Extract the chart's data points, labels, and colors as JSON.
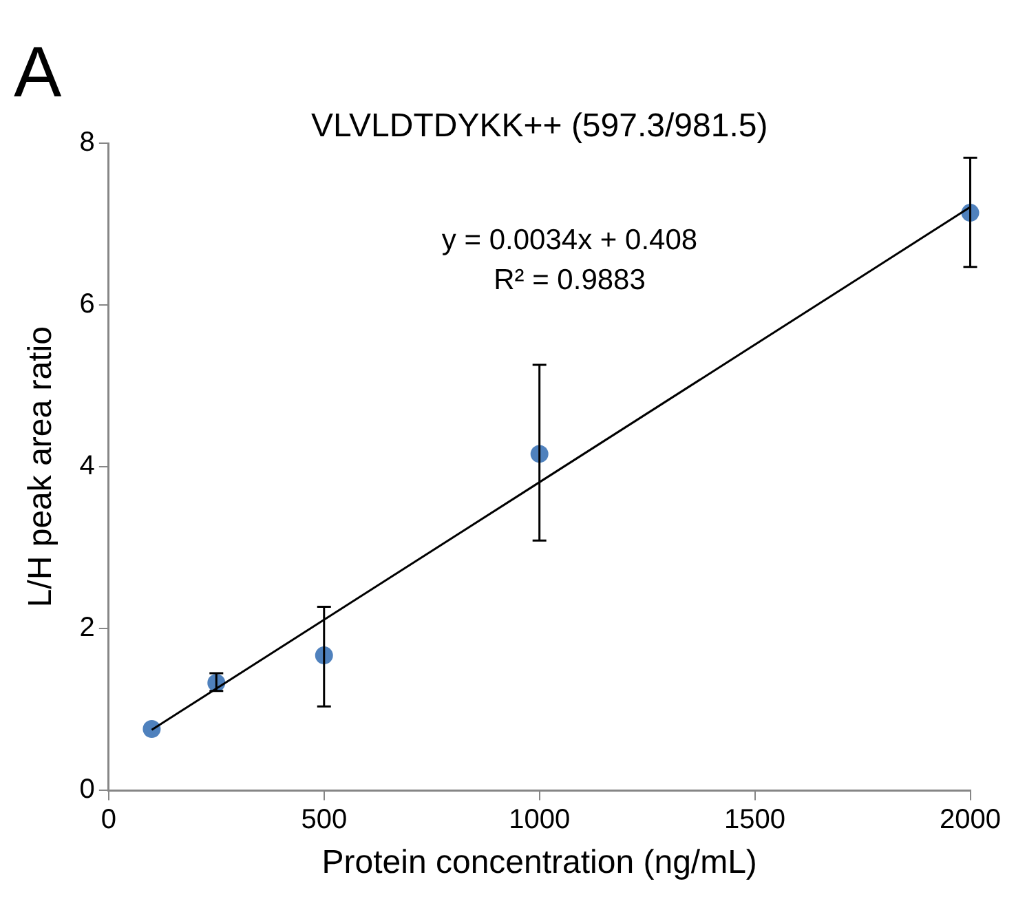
{
  "chart_data": {
    "type": "scatter",
    "title": "VLVLDTDYKK++ (597.3/981.5)",
    "xlabel": "Protein concentration (ng/mL)",
    "ylabel": "L/H peak area ratio",
    "annotations": [
      "A",
      "y = 0.0034x + 0.408",
      "R² = 0.9883"
    ],
    "series": [
      {
        "color": "#4f81bd",
        "x": [
          100,
          250,
          500,
          1000,
          2000
        ],
        "values": [
          0.76,
          1.33,
          1.67,
          4.16,
          7.14
        ],
        "errors": [
          null,
          [
            1.23,
            1.45
          ],
          [
            1.04,
            2.27
          ],
          [
            3.09,
            5.26
          ],
          [
            6.47,
            7.82
          ]
        ],
        "marker": "circle"
      },
      {
        "type": "line",
        "color": "#000000",
        "x": [
          100,
          2000
        ],
        "values": [
          0.75,
          7.21
        ],
        "marker": "none",
        "line_style": "solid"
      }
    ],
    "xlim": [
      0,
      2000
    ],
    "xticks": [
      0,
      500,
      1000,
      1500,
      2000
    ],
    "ylim": [
      0,
      8
    ],
    "yticks": [
      0,
      2,
      4,
      6,
      8
    ],
    "grid": false,
    "legend": false
  }
}
